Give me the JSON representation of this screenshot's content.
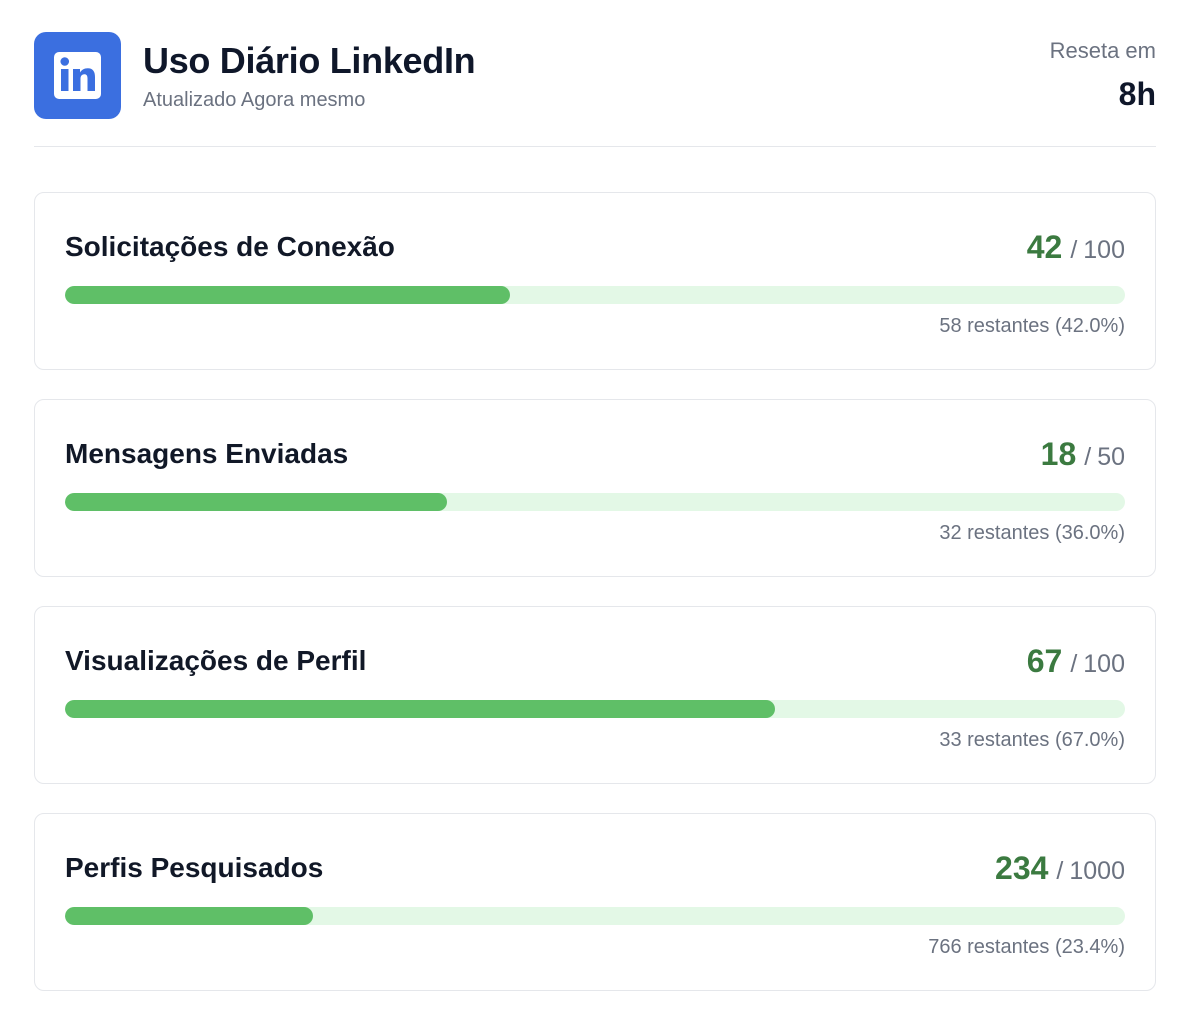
{
  "header": {
    "logo_icon": "linkedin-logo-icon",
    "logo_text": "in",
    "title": "Uso Diário LinkedIn",
    "subtitle": "Atualizado Agora mesmo",
    "reset_label": "Reseta em",
    "reset_value": "8h"
  },
  "colors": {
    "brand": "#3b6fe0",
    "accent_green": "#3b7a40",
    "bar_fill": "#5fbf67",
    "bar_track": "#e3f8e6"
  },
  "metrics": [
    {
      "label": "Solicitações de Conexão",
      "used": "42",
      "separator": "/",
      "limit": "100",
      "remaining_text": "58 restantes (42.0%)",
      "progress": 0.42
    },
    {
      "label": "Mensagens Enviadas",
      "used": "18",
      "separator": "/",
      "limit": "50",
      "remaining_text": "32 restantes (36.0%)",
      "progress": 0.36
    },
    {
      "label": "Visualizações de Perfil",
      "used": "67",
      "separator": "/",
      "limit": "100",
      "remaining_text": "33 restantes (67.0%)",
      "progress": 0.67
    },
    {
      "label": "Perfis Pesquisados",
      "used": "234",
      "separator": "/",
      "limit": "1000",
      "remaining_text": "766 restantes (23.4%)",
      "progress": 0.234
    }
  ]
}
